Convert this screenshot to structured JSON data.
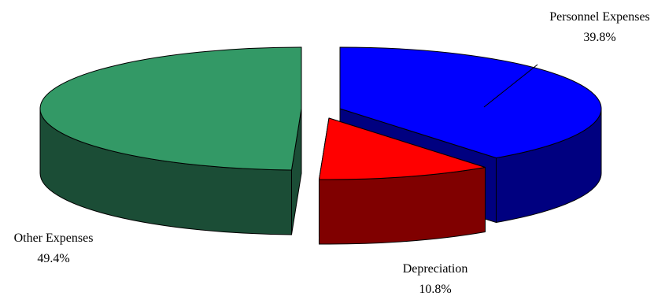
{
  "chart_data": {
    "type": "pie",
    "style": "3d-exploded",
    "title": "",
    "slices": [
      {
        "name": "Personnel Expenses",
        "value": 39.8,
        "display": "39.8%",
        "color": "#0000ff",
        "side_color": "#000080"
      },
      {
        "name": "Depreciation",
        "value": 10.8,
        "display": "10.8%",
        "color": "#ff0000",
        "side_color": "#800000"
      },
      {
        "name": "Other Expenses",
        "value": 49.4,
        "display": "49.4%",
        "color": "#339966",
        "side_color": "#1b4d36"
      }
    ],
    "legend": "none"
  }
}
